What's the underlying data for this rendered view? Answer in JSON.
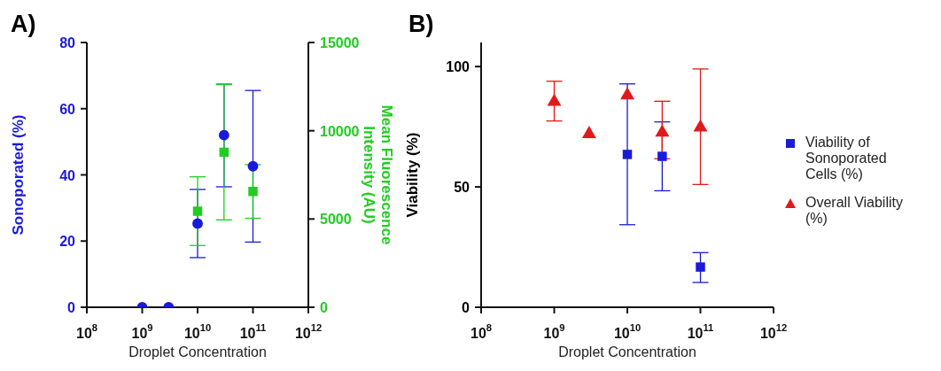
{
  "chart_data": [
    {
      "type": "scatter",
      "title": "A)",
      "xlabel": "Droplet Concentration",
      "ylabel": "Sonoporated (%)",
      "y2label": "Mean Fluorescence Intensity (AU)",
      "log": "x",
      "xlim": [
        100000000.0,
        1000000000000.0
      ],
      "xticks": [
        {
          "value": 100000000.0,
          "label": "10$^{8}$"
        },
        {
          "value": 1000000000.0,
          "label": "10$^{9}$"
        },
        {
          "value": 10000000000.0,
          "label": "10$^{10}$"
        },
        {
          "value": 100000000000.0,
          "label": "10$^{11}$"
        },
        {
          "value": 1000000000000.0,
          "label": "10$^{12}$"
        }
      ],
      "ylim": [
        0,
        80
      ],
      "yticks": [
        0,
        20,
        40,
        60,
        80
      ],
      "y2lim": [
        0,
        15000
      ],
      "y2ticks": [
        0,
        5000,
        10000,
        15000
      ],
      "grid": false,
      "legend": false,
      "series": [
        {
          "color": "#1a1adc",
          "marker": "circle",
          "x": [
            1000000000.0,
            3000000000.0,
            10000000000.0,
            30000000000.0,
            100000000000.0
          ],
          "values": [
            0,
            0,
            25.3,
            52,
            42.6
          ],
          "errors": [
            null,
            null,
            [
              15,
              35.6
            ],
            [
              36.4,
              67.4
            ],
            [
              19.7,
              65.5
            ]
          ]
        },
        {
          "color": "#22cc22",
          "marker": "square",
          "axis": "y2",
          "x": [
            10000000000.0,
            30000000000.0,
            100000000000.0
          ],
          "values": [
            5440,
            8780,
            6560
          ],
          "errors": [
            [
              3500,
              7390
            ],
            [
              4950,
              12610
            ],
            [
              5040,
              8080
            ]
          ]
        }
      ]
    },
    {
      "type": "scatter",
      "title": "B)",
      "xlabel": "Droplet Concentration",
      "ylabel": "Viability (%)",
      "log": "x",
      "xlim": [
        100000000.0,
        1000000000000.0
      ],
      "xticks": [
        {
          "value": 100000000.0,
          "label": "10$^{8}$"
        },
        {
          "value": 1000000000.0,
          "label": "10$^{9}$"
        },
        {
          "value": 10000000000.0,
          "label": "10$^{10}$"
        },
        {
          "value": 100000000000.0,
          "label": "10$^{11}$"
        },
        {
          "value": 1000000000000.0,
          "label": "10$^{12}$"
        }
      ],
      "ylim": [
        0,
        110
      ],
      "yticks": [
        0,
        50,
        100
      ],
      "grid": false,
      "legend": "right",
      "series": [
        {
          "name": "Viability of Sonoporated Cells (%)",
          "color": "#1a1adc",
          "marker": "square",
          "x": [
            10000000000.0,
            30000000000.0,
            100000000000.0
          ],
          "values": [
            63.5,
            62.7,
            16.7
          ],
          "errors": [
            [
              34.3,
              92.8
            ],
            [
              48.4,
              77
            ],
            [
              10.3,
              22.7
            ]
          ]
        },
        {
          "name": "Overall Viability (%)",
          "color": "#e01a1a",
          "marker": "triangle",
          "x": [
            1000000000.0,
            3000000000.0,
            10000000000.0,
            30000000000.0,
            100000000000.0
          ],
          "values": [
            85.4,
            72,
            88.1,
            72.6,
            74.7
          ],
          "errors": [
            [
              77.4,
              93.9
            ],
            null,
            null,
            [
              61.7,
              85.6
            ],
            [
              51,
              99
            ]
          ]
        }
      ]
    }
  ]
}
